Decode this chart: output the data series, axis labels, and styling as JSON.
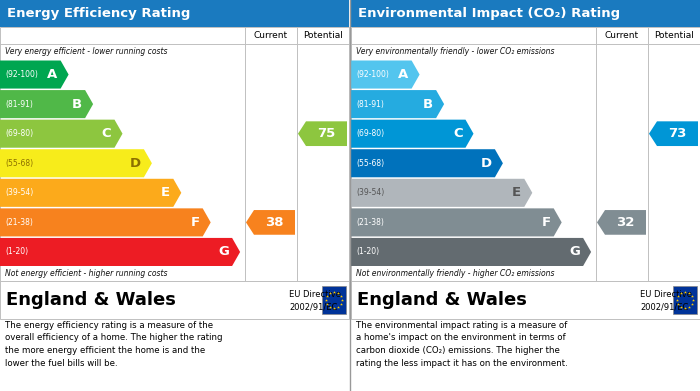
{
  "left_title": "Energy Efficiency Rating",
  "right_title": "Environmental Impact (CO₂) Rating",
  "header_bg": "#1a7abf",
  "bands_left": [
    {
      "label": "A",
      "range": "(92-100)",
      "wf": 0.28,
      "color": "#00a650",
      "lc": "#ffffff"
    },
    {
      "label": "B",
      "range": "(81-91)",
      "wf": 0.38,
      "color": "#50b848",
      "lc": "#ffffff"
    },
    {
      "label": "C",
      "range": "(69-80)",
      "wf": 0.5,
      "color": "#8dc63f",
      "lc": "#ffffff"
    },
    {
      "label": "D",
      "range": "(55-68)",
      "wf": 0.62,
      "color": "#f7ec1b",
      "lc": "#8b7000"
    },
    {
      "label": "E",
      "range": "(39-54)",
      "wf": 0.74,
      "color": "#fcaa1b",
      "lc": "#ffffff"
    },
    {
      "label": "F",
      "range": "(21-38)",
      "wf": 0.86,
      "color": "#f7821e",
      "lc": "#ffffff"
    },
    {
      "label": "G",
      "range": "(1-20)",
      "wf": 0.98,
      "color": "#ed1c24",
      "lc": "#ffffff"
    }
  ],
  "bands_right": [
    {
      "label": "A",
      "range": "(92-100)",
      "wf": 0.28,
      "color": "#53c5ee",
      "lc": "#ffffff"
    },
    {
      "label": "B",
      "range": "(81-91)",
      "wf": 0.38,
      "color": "#25abe0",
      "lc": "#ffffff"
    },
    {
      "label": "C",
      "range": "(69-80)",
      "wf": 0.5,
      "color": "#0096d6",
      "lc": "#ffffff"
    },
    {
      "label": "D",
      "range": "(55-68)",
      "wf": 0.62,
      "color": "#0072bc",
      "lc": "#ffffff"
    },
    {
      "label": "E",
      "range": "(39-54)",
      "wf": 0.74,
      "color": "#b0b6bb",
      "lc": "#555555"
    },
    {
      "label": "F",
      "range": "(21-38)",
      "wf": 0.86,
      "color": "#808d93",
      "lc": "#ffffff"
    },
    {
      "label": "G",
      "range": "(1-20)",
      "wf": 0.98,
      "color": "#636b70",
      "lc": "#ffffff"
    }
  ],
  "left_current": {
    "value": 38,
    "band_idx": 5,
    "color": "#f7821e"
  },
  "left_potential": {
    "value": 75,
    "band_idx": 2,
    "color": "#8dc63f"
  },
  "right_current": {
    "value": 32,
    "band_idx": 5,
    "color": "#808d93"
  },
  "right_potential": {
    "value": 73,
    "band_idx": 2,
    "color": "#0096d6"
  },
  "top_note_left": "Very energy efficient - lower running costs",
  "bottom_note_left": "Not energy efficient - higher running costs",
  "top_note_right": "Very environmentally friendly - lower CO₂ emissions",
  "bottom_note_right": "Not environmentally friendly - higher CO₂ emissions",
  "footer_left": "England & Wales",
  "footer_right": "England & Wales",
  "desc_left": "The energy efficiency rating is a measure of the\noverall efficiency of a home. The higher the rating\nthe more energy efficient the home is and the\nlower the fuel bills will be.",
  "desc_right": "The environmental impact rating is a measure of\na home's impact on the environment in terms of\ncarbon dioxide (CO₂) emissions. The higher the\nrating the less impact it has on the environment."
}
